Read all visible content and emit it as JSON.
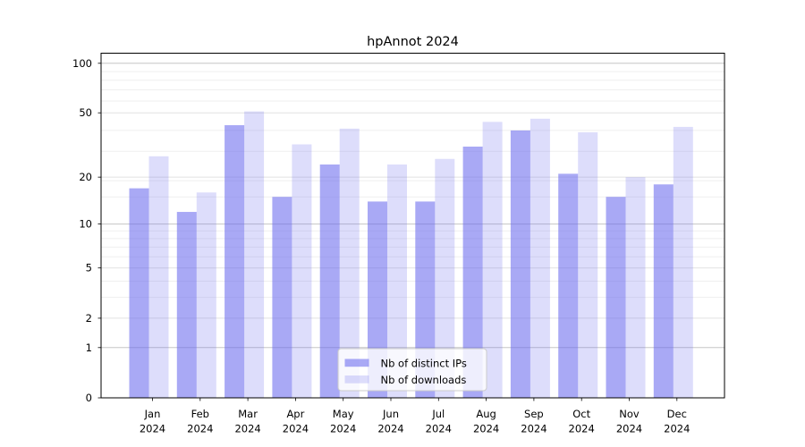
{
  "chart_data": {
    "type": "bar",
    "title": "hpAnnot 2024",
    "categories": [
      "Jan",
      "Feb",
      "Mar",
      "Apr",
      "May",
      "Jun",
      "Jul",
      "Aug",
      "Sep",
      "Oct",
      "Nov",
      "Dec"
    ],
    "x_sublabel_year": "2024",
    "series": [
      {
        "name": "Nb of distinct IPs",
        "color": "#6666ee",
        "color_css": "rgba(102,102,238,0.56)",
        "values": [
          17,
          12,
          42,
          15,
          24,
          14,
          14,
          31,
          39,
          21,
          15,
          18
        ]
      },
      {
        "name": "Nb of downloads",
        "color": "#6666ee",
        "color_css": "rgba(102,102,238,0.22)",
        "values": [
          27,
          16,
          51,
          32,
          40,
          24,
          26,
          44,
          46,
          38,
          20,
          41
        ]
      }
    ],
    "yscale": "log10(1+value)",
    "ylim": [
      0,
      100
    ],
    "yticks": [
      0,
      1,
      2,
      5,
      10,
      20,
      50,
      100
    ],
    "major_gridline_values": [
      1,
      10,
      100
    ],
    "minor_gridline_values": [
      3,
      4,
      6,
      7,
      8,
      9,
      15,
      19,
      29,
      39,
      59,
      69,
      79,
      89
    ],
    "grid": true,
    "legend_position": "lower center",
    "colors": {
      "major_grid": "#c6c6c6",
      "labeled_grid": "#e2e2e2",
      "minor_grid": "#efefef",
      "spine": "#000000",
      "legend_border": "#cccccc",
      "legend_bg": "rgba(255,255,255,0.8)"
    }
  }
}
